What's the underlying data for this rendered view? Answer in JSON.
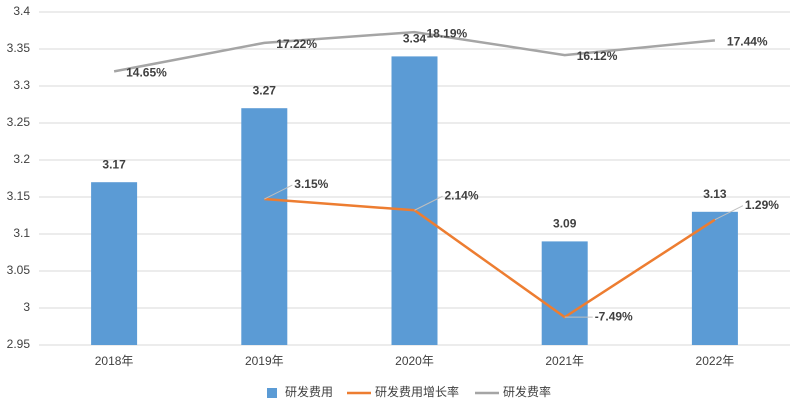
{
  "chart_data": {
    "type": "bar",
    "categories": [
      "2018年",
      "2019年",
      "2020年",
      "2021年",
      "2022年"
    ],
    "series": [
      {
        "name": "研发费用",
        "type": "bar",
        "color": "#5b9bd5",
        "values": [
          3.17,
          3.27,
          3.34,
          3.09,
          3.13
        ]
      },
      {
        "name": "研发费用增长率",
        "type": "line",
        "axis": "y2",
        "color": "#ed7d31",
        "values": [
          null,
          3.15,
          2.14,
          -7.49,
          1.29
        ],
        "value_labels": [
          null,
          "3.15%",
          "2.14%",
          "-7.49%",
          "1.29%"
        ]
      },
      {
        "name": "研发费率",
        "type": "line",
        "axis": "y2",
        "color": "#a5a5a5",
        "values": [
          14.65,
          17.22,
          18.19,
          16.12,
          17.44
        ],
        "value_labels": [
          "14.65%",
          "17.22%",
          "18.19%",
          "16.12%",
          "17.44%"
        ]
      }
    ],
    "ylim": [
      2.95,
      3.4
    ],
    "yticks": [
      2.95,
      3,
      3.05,
      3.1,
      3.15,
      3.2,
      3.25,
      3.3,
      3.35,
      3.4
    ],
    "y2lim": [
      -10,
      20
    ],
    "grid": true,
    "legend": "bottom"
  }
}
